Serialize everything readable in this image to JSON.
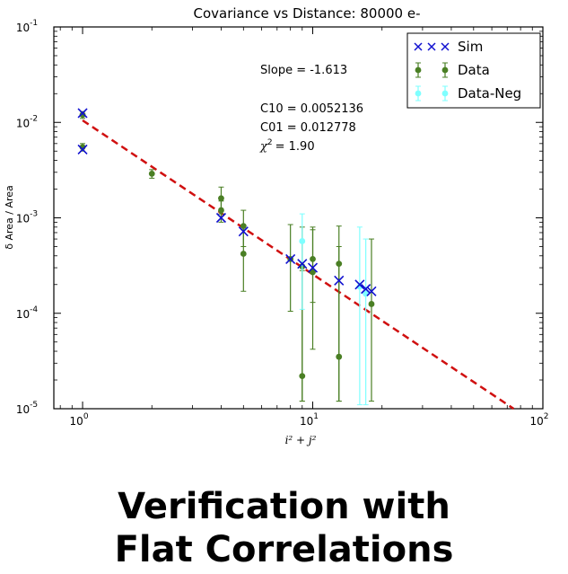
{
  "chart_data": {
    "type": "scatter",
    "title": "Covariance vs Distance: 80000 e-",
    "xlabel": "i² + j²",
    "ylabel": "δ Area / Area",
    "xscale": "log",
    "yscale": "log",
    "xlim": [
      0.75,
      100
    ],
    "ylim": [
      1e-05,
      0.1
    ],
    "x_ticks": [
      {
        "value": 1,
        "base": "10",
        "exp": "0"
      },
      {
        "value": 10,
        "base": "10",
        "exp": "1"
      },
      {
        "value": 100,
        "base": "10",
        "exp": "2"
      }
    ],
    "y_ticks": [
      {
        "value": 1e-05,
        "base": "10",
        "exp": "-5"
      },
      {
        "value": 0.0001,
        "base": "10",
        "exp": "-4"
      },
      {
        "value": 0.001,
        "base": "10",
        "exp": "-3"
      },
      {
        "value": 0.01,
        "base": "10",
        "exp": "-2"
      },
      {
        "value": 0.1,
        "base": "10",
        "exp": "-1"
      }
    ],
    "legend_position": "top-right",
    "grid": false,
    "series": [
      {
        "name": "Sim",
        "marker": "x",
        "color": "#1010d0",
        "points": [
          {
            "x": 1,
            "y": 0.0125
          },
          {
            "x": 1,
            "y": 0.0052
          },
          {
            "x": 4,
            "y": 0.001
          },
          {
            "x": 5,
            "y": 0.00072
          },
          {
            "x": 8,
            "y": 0.00037
          },
          {
            "x": 9,
            "y": 0.00033
          },
          {
            "x": 10,
            "y": 0.0003
          },
          {
            "x": 13,
            "y": 0.00022
          },
          {
            "x": 16,
            "y": 0.0002
          },
          {
            "x": 17,
            "y": 0.00018
          },
          {
            "x": 18,
            "y": 0.00017
          }
        ]
      },
      {
        "name": "Data",
        "marker": "o",
        "color": "#4a7f24",
        "points": [
          {
            "x": 1,
            "y": 0.012,
            "ylo": 0.011,
            "yhi": 0.013
          },
          {
            "x": 1,
            "y": 0.0055,
            "ylo": 0.005,
            "yhi": 0.006
          },
          {
            "x": 2,
            "y": 0.0029,
            "ylo": 0.0026,
            "yhi": 0.0032
          },
          {
            "x": 4,
            "y": 0.0016,
            "ylo": 0.0011,
            "yhi": 0.0021
          },
          {
            "x": 4,
            "y": 0.0012,
            "ylo": 0.0009,
            "yhi": 0.0015
          },
          {
            "x": 5,
            "y": 0.00082,
            "ylo": 0.0005,
            "yhi": 0.0012
          },
          {
            "x": 5,
            "y": 0.00042,
            "ylo": 0.00017,
            "yhi": 0.00075
          },
          {
            "x": 8,
            "y": 0.00037,
            "ylo": 0.000105,
            "yhi": 0.00085
          },
          {
            "x": 9,
            "y": 0.00031,
            "ylo": 1.2e-05,
            "yhi": 0.0008
          },
          {
            "x": 9,
            "y": 2.2e-05,
            "ylo": 1.2e-05,
            "yhi": 0.00028
          },
          {
            "x": 10,
            "y": 0.00037,
            "ylo": 0.00013,
            "yhi": 0.0008
          },
          {
            "x": 10,
            "y": 0.00027,
            "ylo": 4.2e-05,
            "yhi": 0.00075
          },
          {
            "x": 13,
            "y": 0.00033,
            "ylo": 1.2e-05,
            "yhi": 0.00082
          },
          {
            "x": 13,
            "y": 3.5e-05,
            "ylo": 1.2e-05,
            "yhi": 0.0005
          },
          {
            "x": 18,
            "y": 0.000125,
            "ylo": 1.2e-05,
            "yhi": 0.0006
          }
        ]
      },
      {
        "name": "Data-Neg",
        "marker": "o",
        "color": "#7fffff",
        "points": [
          {
            "x": 9,
            "y": 0.00057,
            "ylo": 0.00011,
            "yhi": 0.0011
          },
          {
            "x": 16,
            "y": 0.00019,
            "ylo": 1.1e-05,
            "yhi": 0.0008
          },
          {
            "x": 17,
            "y": 0.00016,
            "ylo": 1.1e-05,
            "yhi": 0.0006
          }
        ]
      }
    ],
    "fit_line": {
      "color": "#d01010",
      "style": "dashed",
      "slope": -1.613,
      "x_start": 1,
      "y_start": 0.0105
    },
    "annotations": [
      {
        "text": "Slope = -1.613"
      },
      {
        "text": "C10 = 0.0052136"
      },
      {
        "text": "C01 = 0.012778"
      },
      {
        "text": "= 1.90",
        "prefix": "χ",
        "sup": "2"
      }
    ]
  },
  "caption": {
    "line1": "Verification with",
    "line2": "Flat Correlations"
  }
}
